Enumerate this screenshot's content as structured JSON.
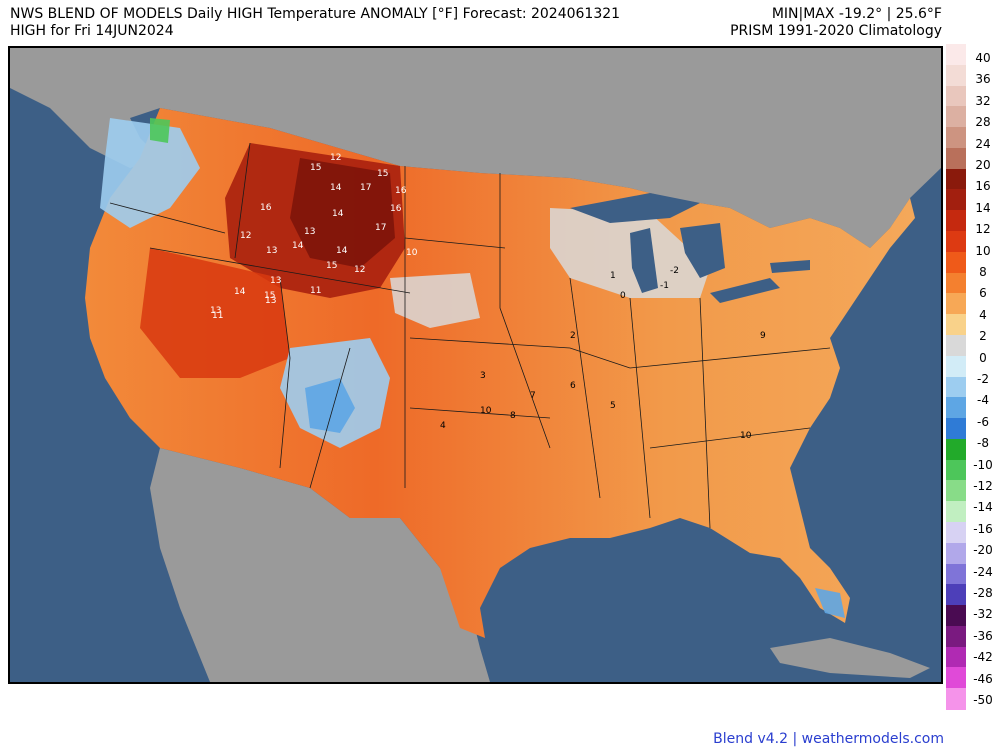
{
  "header": {
    "title": "NWS BLEND OF MODELS Daily HIGH Temperature ANOMALY [°F] Forecast: 2024061321",
    "subtitle": "HIGH for Fri 14JUN2024",
    "minmax": "MIN|MAX -19.2° | 25.6°F",
    "climatology": "PRISM 1991-2020 Climatology"
  },
  "credit": "Blend v4.2 | weathermodels.com",
  "colors": {
    "ocean": "#3d5f86",
    "land_outside": "#9a9a9a",
    "lakes": "#3d5f86",
    "border": "#000000"
  },
  "colorbar": {
    "labels": [
      "40",
      "36",
      "32",
      "28",
      "24",
      "20",
      "16",
      "14",
      "12",
      "10",
      "8",
      "6",
      "4",
      "2",
      "0",
      "-2",
      "-4",
      "-6",
      "-8",
      "-10",
      "-12",
      "-14",
      "-16",
      "-20",
      "-24",
      "-28",
      "-32",
      "-36",
      "-42",
      "-46",
      "-50"
    ],
    "colors": [
      "#fbe9e9",
      "#f3dcd6",
      "#e9c7bd",
      "#dcb0a2",
      "#cd9481",
      "#b9705b",
      "#8a1a0c",
      "#a21f0f",
      "#c5290f",
      "#dd3a12",
      "#ef5a19",
      "#f4802f",
      "#f7a856",
      "#f9d28a",
      "#d9d9d9",
      "#d2ecf7",
      "#9dcdf0",
      "#5ea6e4",
      "#2f7bd6",
      "#22aa2a",
      "#4dc65a",
      "#88dc88",
      "#c1efc1",
      "#d7d2f3",
      "#b1a8ea",
      "#7f74d8",
      "#4d3fb9",
      "#4a0b52",
      "#7a1a80",
      "#b02ab3",
      "#e04ad8",
      "#f593ea"
    ]
  },
  "map": {
    "value_labels": [
      {
        "t": "15",
        "c": "w"
      },
      {
        "t": "14",
        "c": "w"
      },
      {
        "t": "17",
        "c": "w"
      },
      {
        "t": "15",
        "c": "w"
      },
      {
        "t": "16",
        "c": "w"
      },
      {
        "t": "14",
        "c": "w"
      },
      {
        "t": "12",
        "c": "w"
      },
      {
        "t": "16",
        "c": "w"
      },
      {
        "t": "13",
        "c": "w"
      },
      {
        "t": "16",
        "c": "w"
      },
      {
        "t": "17",
        "c": "w"
      },
      {
        "t": "14",
        "c": "w"
      },
      {
        "t": "15",
        "c": "w"
      },
      {
        "t": "12",
        "c": "w"
      },
      {
        "t": "10",
        "c": "w"
      },
      {
        "t": "12",
        "c": "w"
      },
      {
        "t": "14",
        "c": "w"
      },
      {
        "t": "13",
        "c": "w"
      },
      {
        "t": "11",
        "c": "w"
      },
      {
        "t": "13",
        "c": "w"
      },
      {
        "t": "14",
        "c": "w"
      },
      {
        "t": "15",
        "c": "w"
      },
      {
        "t": "13",
        "c": "w"
      },
      {
        "t": "11",
        "c": "w"
      },
      {
        "t": "10",
        "c": "b"
      },
      {
        "t": "8",
        "c": "b"
      },
      {
        "t": "7",
        "c": "b"
      },
      {
        "t": "6",
        "c": "b"
      },
      {
        "t": "5",
        "c": "b"
      },
      {
        "t": "4",
        "c": "b"
      },
      {
        "t": "3",
        "c": "b"
      },
      {
        "t": "2",
        "c": "b"
      },
      {
        "t": "1",
        "c": "b"
      },
      {
        "t": "0",
        "c": "b"
      },
      {
        "t": "-1",
        "c": "b"
      },
      {
        "t": "-2",
        "c": "b"
      },
      {
        "t": "9",
        "c": "b"
      },
      {
        "t": "13",
        "c": "w"
      },
      {
        "t": "10",
        "c": "b"
      }
    ]
  }
}
